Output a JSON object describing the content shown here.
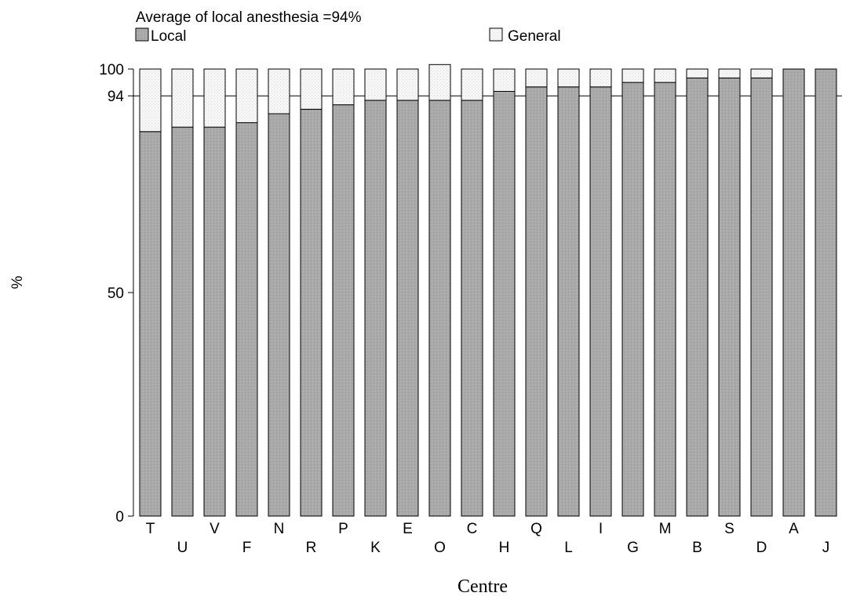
{
  "chart_data": {
    "type": "bar",
    "stacked": true,
    "title": "Average of local anesthesia =94%",
    "xlabel": "Centre",
    "ylabel": "%",
    "ylim": [
      0,
      100
    ],
    "yticks": [
      0,
      50,
      94,
      100
    ],
    "reference_line": 94,
    "legend_placement": "top",
    "categories": [
      "T",
      "U",
      "V",
      "F",
      "N",
      "R",
      "P",
      "K",
      "E",
      "O",
      "C",
      "H",
      "Q",
      "L",
      "I",
      "G",
      "M",
      "B",
      "S",
      "D",
      "A",
      "J"
    ],
    "series": [
      {
        "name": "Local",
        "color": "#a9a9a9",
        "values": [
          86,
          87,
          87,
          88,
          90,
          91,
          92,
          93,
          93,
          93,
          93,
          95,
          96,
          96,
          96,
          97,
          97,
          98,
          98,
          98,
          100,
          100
        ]
      },
      {
        "name": "General",
        "color": "#f4f4f4",
        "values": [
          14,
          13,
          13,
          12,
          10,
          9,
          8,
          7,
          7,
          8,
          7,
          5,
          4,
          4,
          4,
          3,
          3,
          2,
          2,
          2,
          0,
          0
        ]
      }
    ]
  }
}
